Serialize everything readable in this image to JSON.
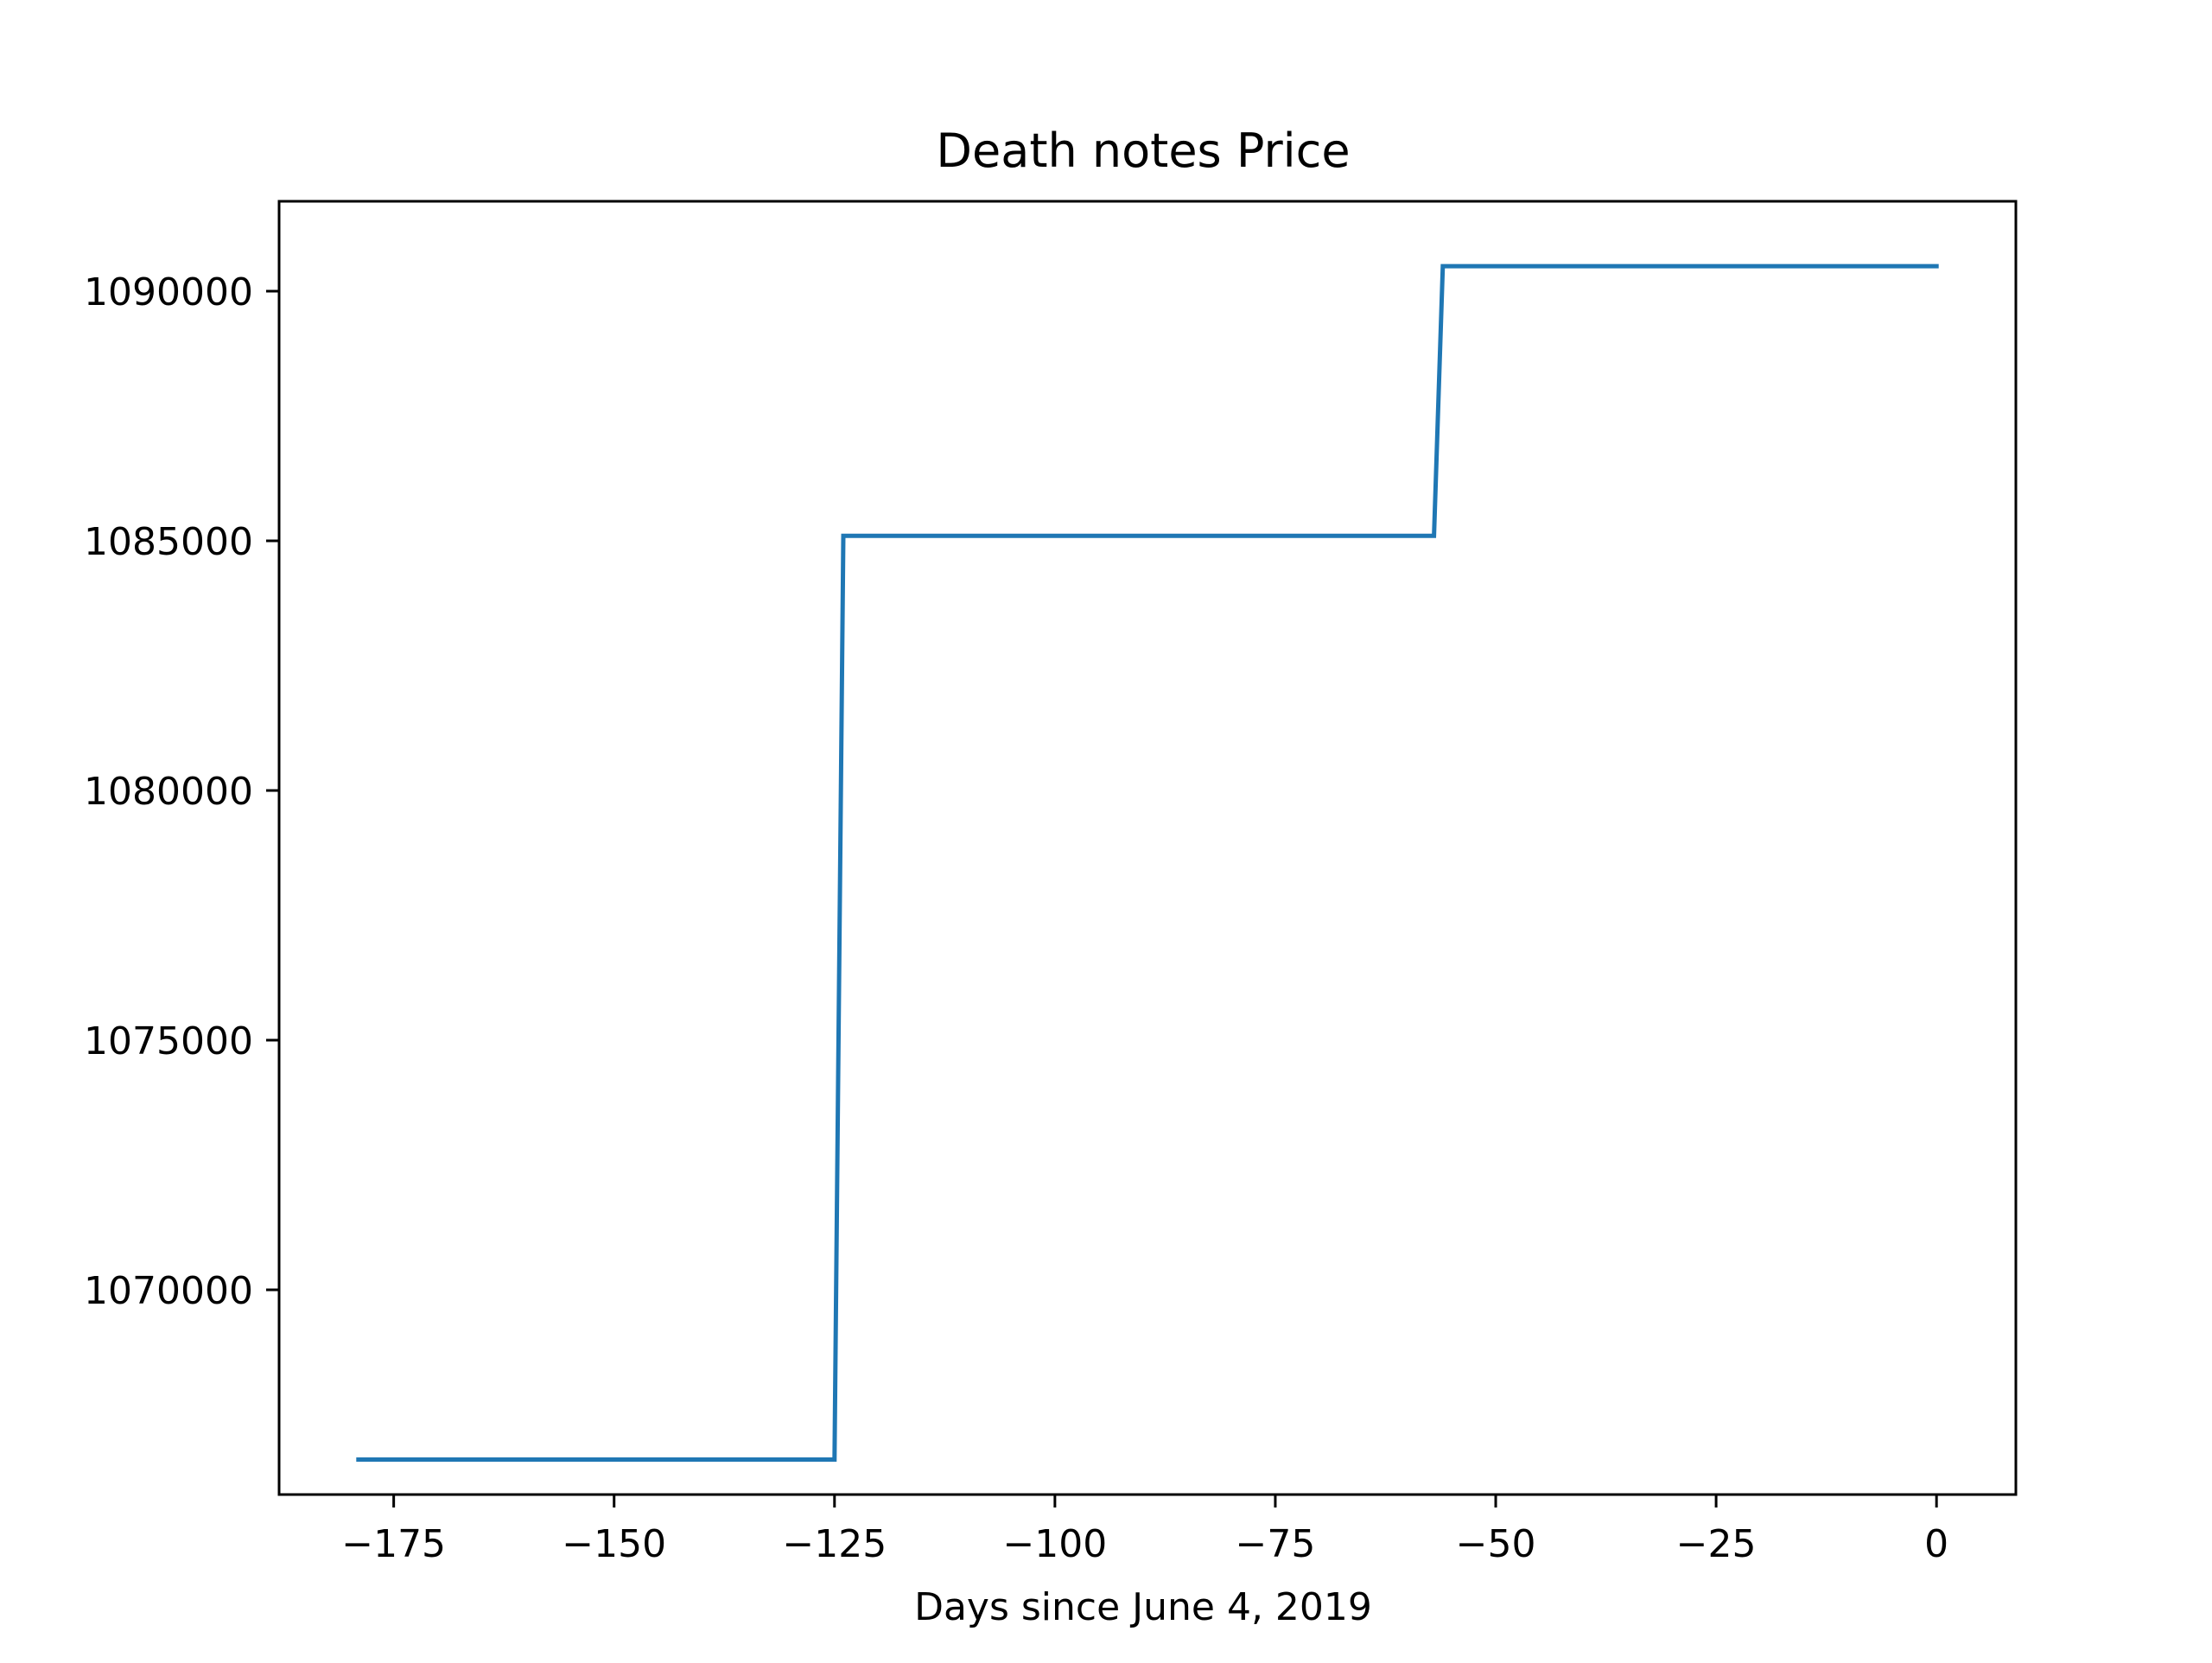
{
  "chart_data": {
    "type": "line",
    "title": "Death notes Price",
    "xlabel": "Days since June 4, 2019",
    "ylabel": "",
    "xlim": [
      -188,
      9
    ],
    "ylim": [
      1065900,
      1091800
    ],
    "grid": false,
    "x_ticks": [
      -175,
      -150,
      -125,
      -100,
      -75,
      -50,
      -25,
      0
    ],
    "x_tick_labels": [
      "−175",
      "−150",
      "−125",
      "−100",
      "−75",
      "−50",
      "−25",
      "0"
    ],
    "y_ticks": [
      1070000,
      1075000,
      1080000,
      1085000,
      1090000
    ],
    "y_tick_labels": [
      "1070000",
      "1075000",
      "1080000",
      "1085000",
      "1090000"
    ],
    "series": [
      {
        "color": "#1f77b4",
        "x": [
          -179,
          -125,
          -124,
          -57,
          -56,
          0
        ],
        "y": [
          1066600,
          1066600,
          1085100,
          1085100,
          1090500,
          1090500
        ]
      }
    ]
  }
}
